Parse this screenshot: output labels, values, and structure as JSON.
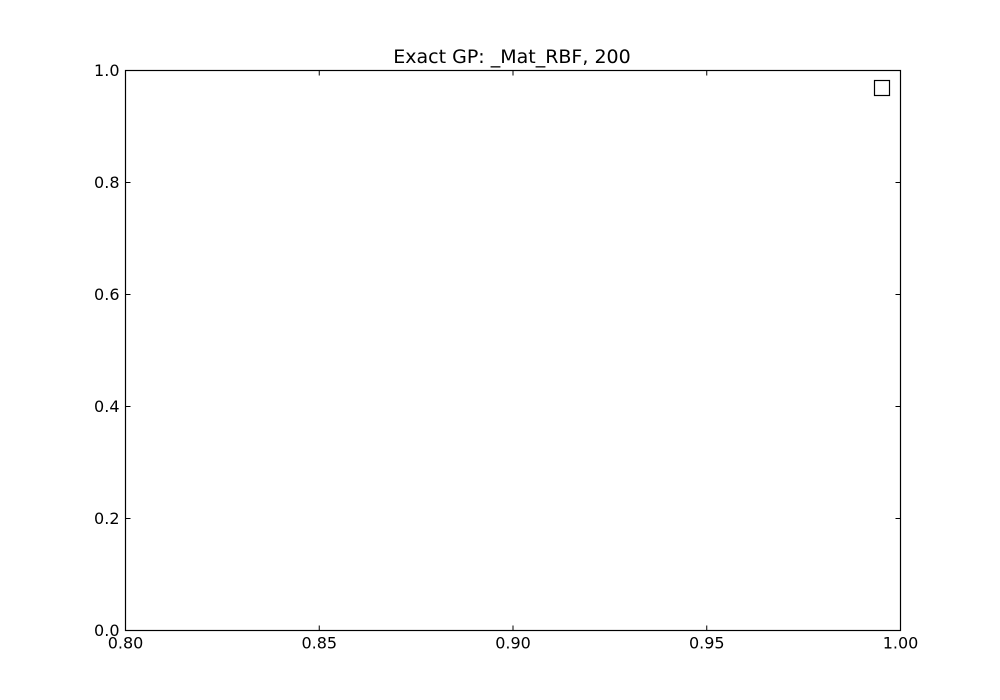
{
  "chart_data": {
    "type": "line",
    "title": "Exact GP: _Mat_RBF, 200",
    "xlabel": "",
    "ylabel": "",
    "xlim": [
      0.8,
      1.0
    ],
    "ylim": [
      0.0,
      1.0
    ],
    "x_ticks": [
      "0.80",
      "0.85",
      "0.90",
      "0.95",
      "1.00"
    ],
    "y_ticks": [
      "0.0",
      "0.2",
      "0.4",
      "0.6",
      "0.8",
      "1.0"
    ],
    "series": [],
    "grid": false,
    "legend": {
      "placement": "top-right",
      "entries": []
    }
  }
}
